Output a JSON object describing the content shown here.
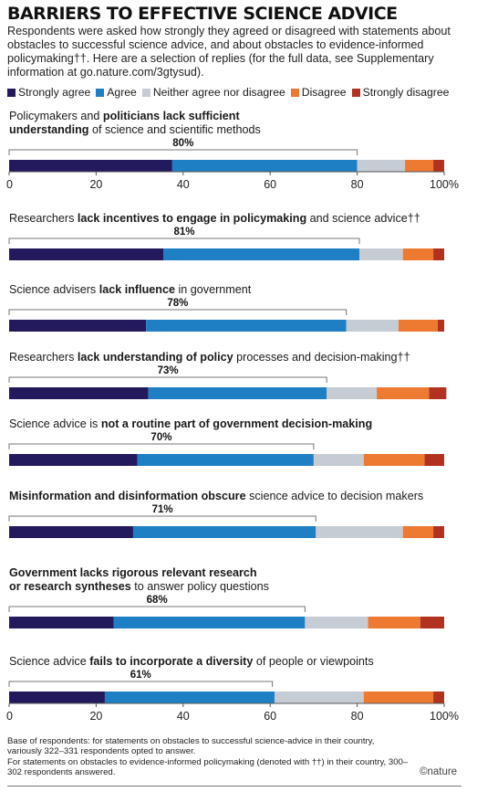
{
  "title": "BARRIERS TO EFFECTIVE SCIENCE ADVICE",
  "subtitle": "Respondents were asked how strongly they agreed or disagreed with statements about obstacles to successful science advice, and about obstacles to evidence-informed policymaking††. Here are a selection of replies (for the full data, see Supplementary information at go.nature.com/3gtysud).",
  "legend": [
    {
      "label": "Strongly agree",
      "color": "#231a5e"
    },
    {
      "label": "Agree",
      "color": "#1f7fc4"
    },
    {
      "label": "Neither agree nor disagree",
      "color": "#c6ccd4"
    },
    {
      "label": "Disagree",
      "color": "#ee7a32"
    },
    {
      "label": "Strongly disagree",
      "color": "#b3321f"
    }
  ],
  "chart_data": {
    "type": "bar",
    "stacked": true,
    "orientation": "horizontal",
    "xlim": [
      0,
      100
    ],
    "x_ticks": [
      "0",
      "20",
      "40",
      "60",
      "80",
      "100%"
    ],
    "series_names": [
      "Strongly agree",
      "Agree",
      "Neither agree nor disagree",
      "Disagree",
      "Strongly disagree"
    ],
    "items": [
      {
        "segments": [
          {
            "text": "Policymakers and ",
            "bold": false
          },
          {
            "text": "politicians lack sufficient",
            "bold": true
          },
          {
            "text": "\n",
            "bold": false
          },
          {
            "text": "understanding",
            "bold": true
          },
          {
            "text": " of science and scientific methods",
            "bold": false
          }
        ],
        "agree_label": "80%",
        "agree_total": 80,
        "values": [
          37.5,
          42.5,
          11,
          6.5,
          2.5
        ],
        "show_axis": true
      },
      {
        "segments": [
          {
            "text": "Researchers ",
            "bold": false
          },
          {
            "text": "lack incentives to engage in policymaking",
            "bold": true
          },
          {
            "text": " and science advice††",
            "bold": false
          }
        ],
        "agree_label": "81%",
        "agree_total": 80.5,
        "values": [
          35.5,
          45,
          10,
          7,
          2.5
        ],
        "show_axis": false
      },
      {
        "segments": [
          {
            "text": "Science advisers ",
            "bold": false
          },
          {
            "text": "lack influence",
            "bold": true
          },
          {
            "text": " in government",
            "bold": false
          }
        ],
        "agree_label": "78%",
        "agree_total": 77.5,
        "values": [
          31.5,
          46,
          12,
          9,
          1.5
        ],
        "show_axis": false
      },
      {
        "segments": [
          {
            "text": "Researchers ",
            "bold": false
          },
          {
            "text": "lack understanding of policy",
            "bold": true
          },
          {
            "text": " processes and decision-making††",
            "bold": false
          }
        ],
        "agree_label": "73%",
        "agree_total": 73,
        "values": [
          32,
          41,
          11.5,
          12,
          4
        ],
        "show_axis": false
      },
      {
        "segments": [
          {
            "text": "Science advice is ",
            "bold": false
          },
          {
            "text": "not a routine part of government decision-making",
            "bold": true
          }
        ],
        "agree_label": "70%",
        "agree_total": 70,
        "values": [
          29.5,
          40.5,
          11.5,
          14,
          4.5
        ],
        "show_axis": false
      },
      {
        "segments": [
          {
            "text": "Misinformation and disinformation obscure",
            "bold": true
          },
          {
            "text": " science advice to decision makers",
            "bold": false
          }
        ],
        "agree_label": "71%",
        "agree_total": 70.5,
        "values": [
          28.5,
          42,
          20,
          7,
          2.5
        ],
        "show_axis": false
      },
      {
        "segments": [
          {
            "text": "Government lacks rigorous relevant research",
            "bold": true
          },
          {
            "text": "\n",
            "bold": false
          },
          {
            "text": "or research syntheses",
            "bold": true
          },
          {
            "text": " to answer policy questions",
            "bold": false
          }
        ],
        "agree_label": "68%",
        "agree_total": 68,
        "values": [
          24,
          44,
          14.5,
          12,
          5.5
        ],
        "show_axis": false
      },
      {
        "segments": [
          {
            "text": "Science advice ",
            "bold": false
          },
          {
            "text": "fails to incorporate a diversity",
            "bold": true
          },
          {
            "text": " of people or viewpoints",
            "bold": false
          }
        ],
        "agree_label": "61%",
        "agree_total": 60.5,
        "values": [
          22,
          39,
          20.5,
          16,
          2.5
        ],
        "show_axis": true
      }
    ]
  },
  "footnote": "Base of respondents: for statements on obstacles to successful science-advice in their country, variously 322–331 respondents opted to answer.\nFor statements on obstacles to evidence-informed policymaking (denoted with ††) in their country, 300–302 respondents answered.",
  "brand": "©nature"
}
